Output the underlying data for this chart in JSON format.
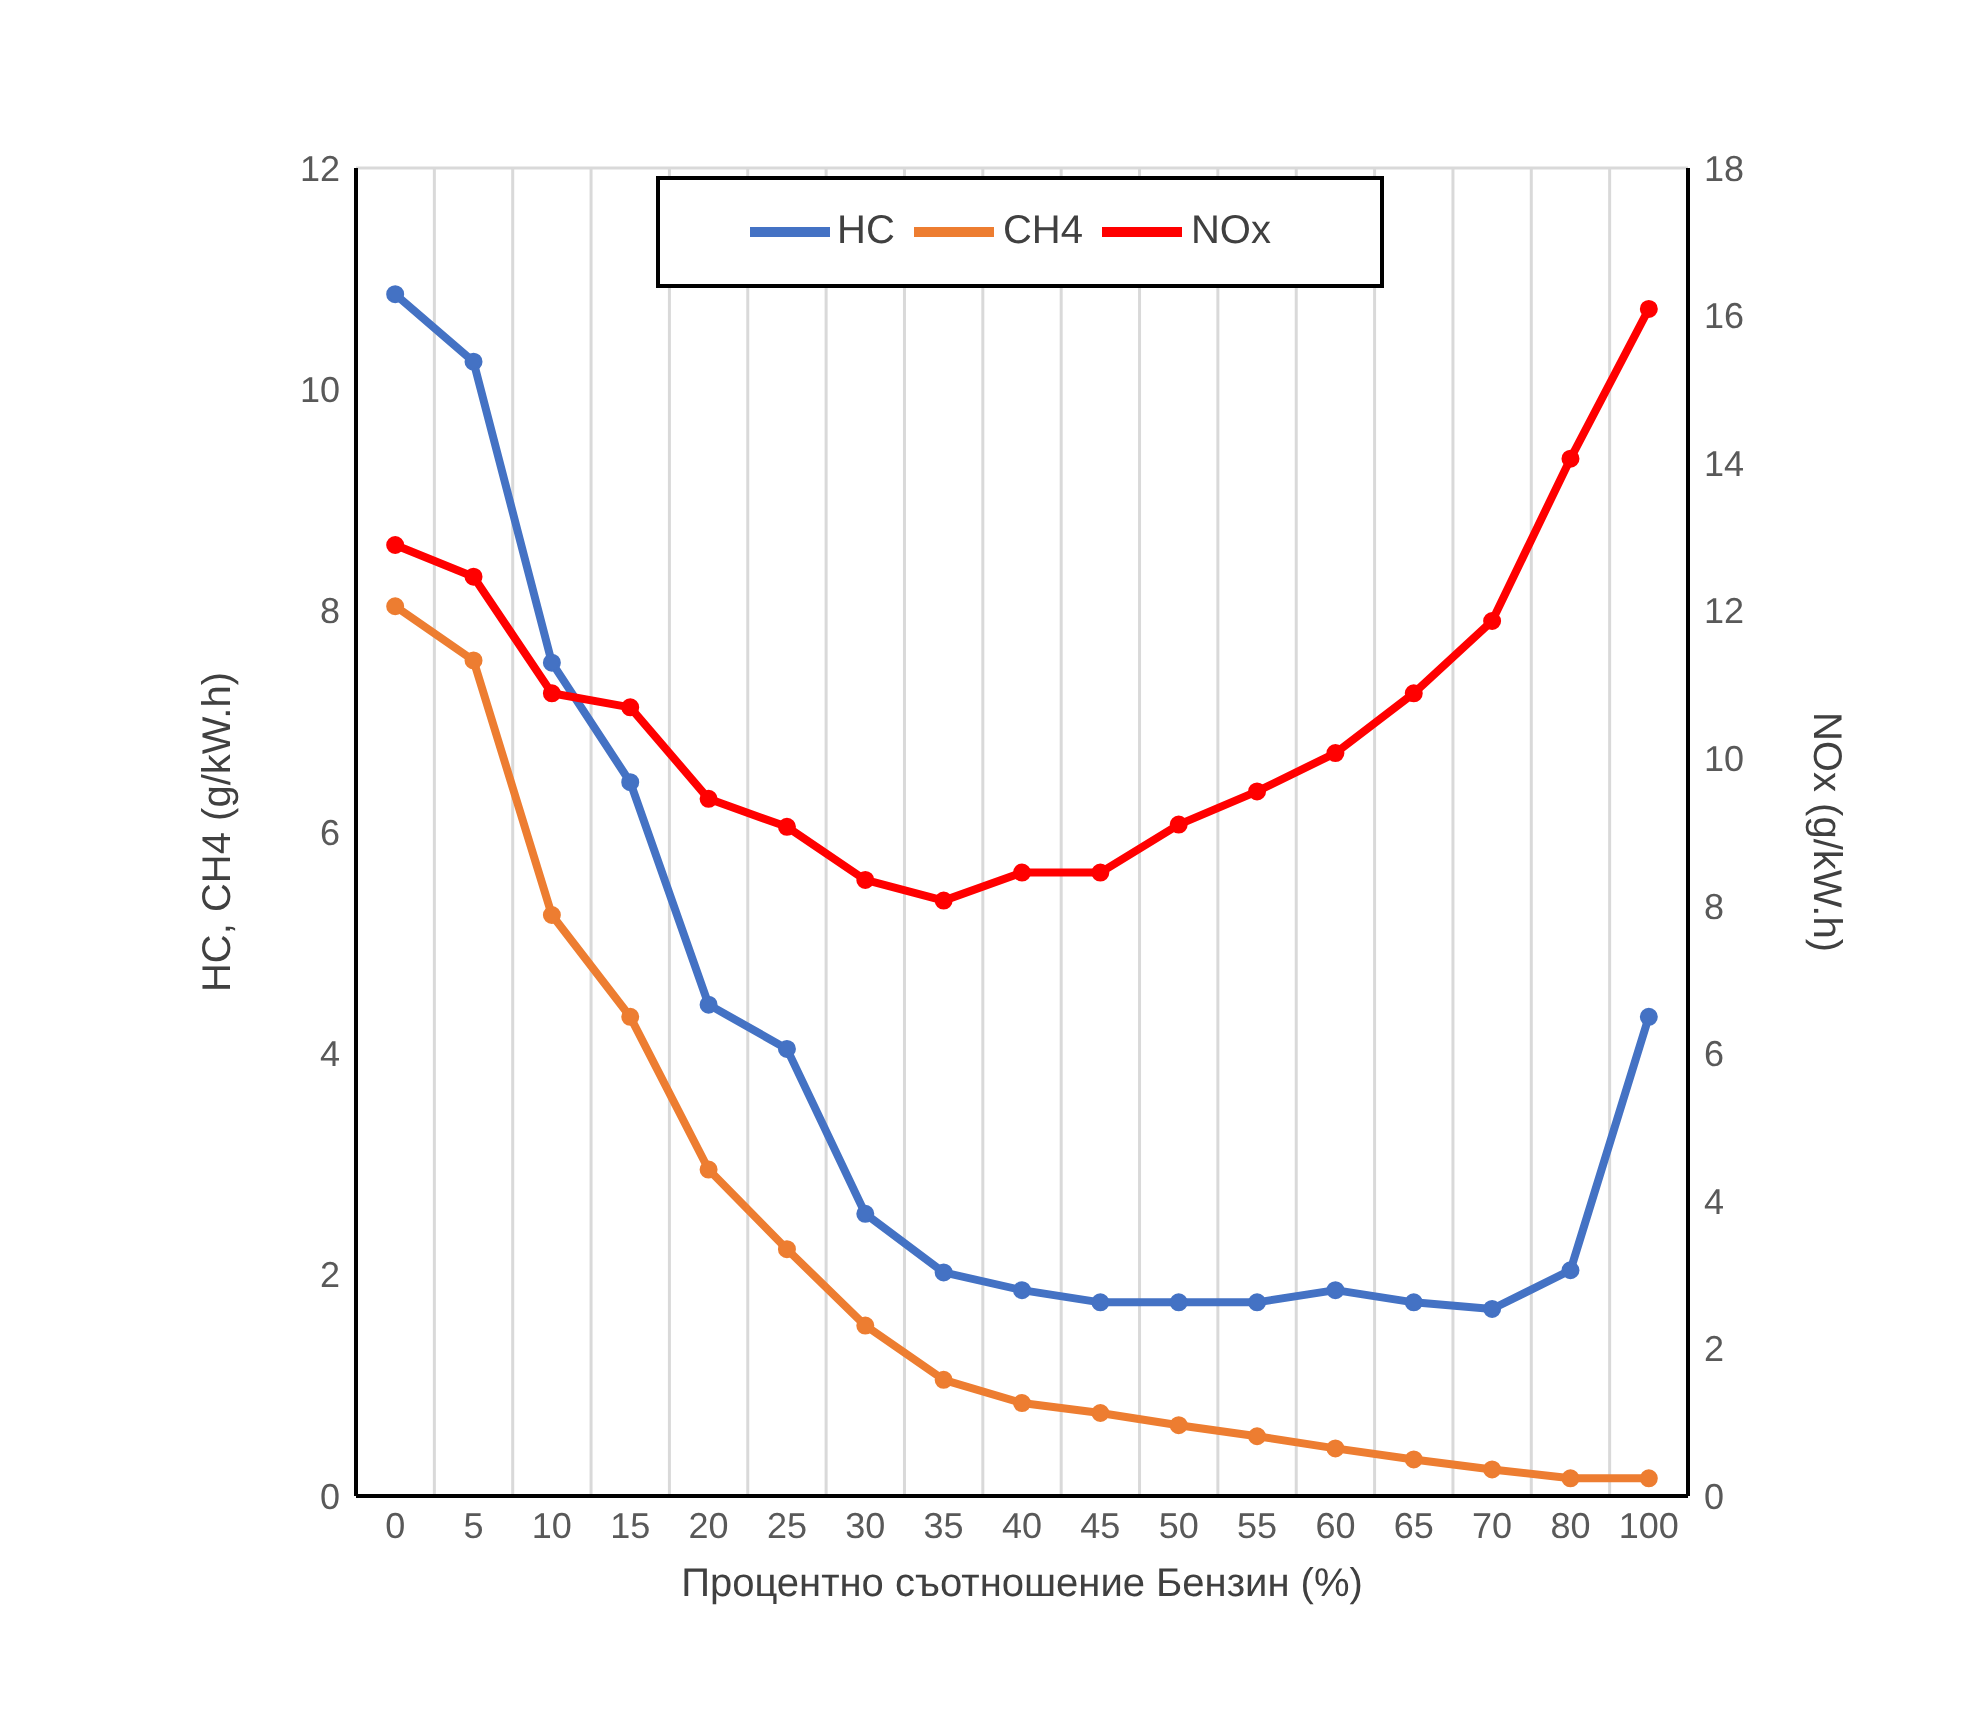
{
  "chart_data": {
    "type": "line",
    "xlabel": "Процентно съотношение Бензин (%)",
    "ylabel": "HC, CH4 (g/kW.h)",
    "y2label": "NOx (g/kW.h)",
    "categories": [
      "0",
      "5",
      "10",
      "15",
      "20",
      "25",
      "30",
      "35",
      "40",
      "45",
      "50",
      "55",
      "60",
      "65",
      "70",
      "80",
      "100"
    ],
    "series": [
      {
        "name": "HC",
        "color": "#4472c4",
        "values": [
          10.86,
          10.25,
          7.53,
          6.45,
          4.44,
          4.04,
          2.55,
          2.02,
          1.86,
          1.75,
          1.75,
          1.75,
          1.86,
          1.75,
          1.69,
          2.04,
          4.33
        ]
      },
      {
        "name": "CH4",
        "color": "#ed7d31",
        "values": [
          8.04,
          7.55,
          5.25,
          4.33,
          2.95,
          2.23,
          1.54,
          1.05,
          0.84,
          0.75,
          0.64,
          0.54,
          0.43,
          0.33,
          0.24,
          0.16,
          0.16
        ]
      },
      {
        "name": "NOx",
        "color": "#ff0000",
        "axis": "y2",
        "values": [
          12.89,
          12.46,
          10.88,
          10.69,
          9.45,
          9.07,
          8.35,
          8.07,
          8.45,
          8.45,
          9.1,
          9.55,
          10.07,
          10.88,
          11.86,
          14.06,
          16.09
        ]
      }
    ],
    "ylim": [
      0,
      12
    ],
    "yticks": [
      0,
      2,
      4,
      6,
      8,
      10,
      12
    ],
    "y2lim": [
      0,
      18
    ],
    "y2ticks": [
      0,
      2,
      4,
      6,
      8,
      10,
      12,
      14,
      16,
      18
    ],
    "grid": true,
    "legend": "top",
    "marker": "circle",
    "line_style": "solid"
  }
}
